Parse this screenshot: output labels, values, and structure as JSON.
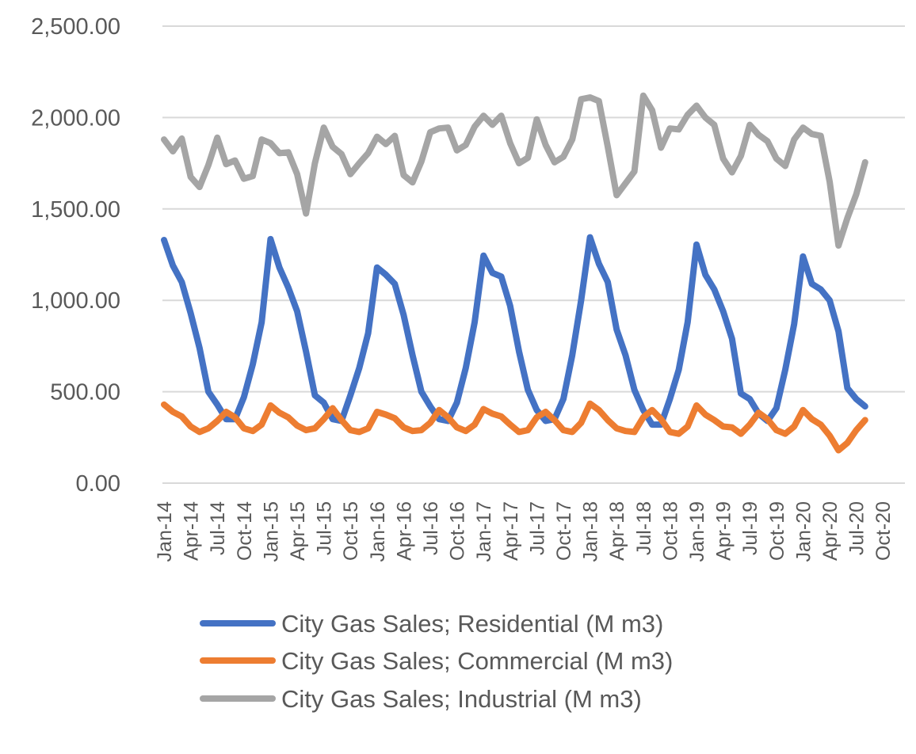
{
  "chart_data": {
    "type": "line",
    "ylim": [
      0,
      2500
    ],
    "yticks": [
      "0.00",
      "500.00",
      "1,000.00",
      "1,500.00",
      "2,000.00",
      "2,500.00"
    ],
    "ytick_values": [
      0,
      500,
      1000,
      1500,
      2000,
      2500
    ],
    "grid": true,
    "legend_position": "bottom",
    "x_start": "Jan-14",
    "xticks": [
      "Jan-14",
      "Apr-14",
      "Jul-14",
      "Oct-14",
      "Jan-15",
      "Apr-15",
      "Jul-15",
      "Oct-15",
      "Jan-16",
      "Apr-16",
      "Jul-16",
      "Oct-16",
      "Jan-17",
      "Apr-17",
      "Jul-17",
      "Oct-17",
      "Jan-18",
      "Apr-18",
      "Jul-18",
      "Oct-18",
      "Jan-19",
      "Apr-19",
      "Jul-19",
      "Oct-19",
      "Jan-20",
      "Apr-20",
      "Jul-20",
      "Oct-20"
    ],
    "series": [
      {
        "name": "City Gas Sales; Residential (M m3)",
        "color": "#4472C4",
        "values": [
          1330,
          1190,
          1100,
          930,
          740,
          500,
          430,
          350,
          350,
          470,
          650,
          880,
          1335,
          1180,
          1070,
          940,
          720,
          480,
          440,
          350,
          340,
          480,
          630,
          820,
          1180,
          1140,
          1090,
          920,
          700,
          500,
          420,
          350,
          340,
          440,
          630,
          880,
          1245,
          1150,
          1130,
          970,
          720,
          510,
          400,
          340,
          350,
          460,
          700,
          1000,
          1345,
          1200,
          1100,
          840,
          700,
          510,
          400,
          320,
          320,
          460,
          620,
          880,
          1305,
          1140,
          1060,
          940,
          790,
          490,
          460,
          380,
          340,
          410,
          620,
          870,
          1240,
          1090,
          1060,
          1000,
          830,
          520,
          460,
          420
        ],
        "label_data_names": "residential"
      },
      {
        "name": "City Gas Sales; Commercial (M m3)",
        "color": "#ED7D31",
        "values": [
          430,
          390,
          365,
          310,
          280,
          300,
          340,
          390,
          360,
          300,
          285,
          320,
          425,
          385,
          360,
          315,
          290,
          300,
          350,
          410,
          345,
          290,
          280,
          300,
          390,
          375,
          355,
          305,
          285,
          290,
          330,
          400,
          360,
          305,
          285,
          320,
          405,
          380,
          365,
          320,
          280,
          290,
          360,
          390,
          345,
          290,
          280,
          330,
          435,
          400,
          345,
          300,
          285,
          280,
          360,
          400,
          350,
          280,
          270,
          310,
          425,
          375,
          345,
          310,
          305,
          270,
          320,
          385,
          350,
          290,
          270,
          310,
          400,
          350,
          320,
          260,
          180,
          220,
          290,
          345
        ],
        "label_data_names": "commercial"
      },
      {
        "name": "City Gas Sales; Industrial (M m3)",
        "color": "#A5A5A5",
        "values": [
          1880,
          1815,
          1885,
          1675,
          1620,
          1740,
          1890,
          1745,
          1765,
          1665,
          1680,
          1880,
          1860,
          1805,
          1810,
          1690,
          1475,
          1750,
          1945,
          1840,
          1800,
          1690,
          1750,
          1805,
          1895,
          1855,
          1900,
          1685,
          1645,
          1760,
          1920,
          1940,
          1945,
          1820,
          1850,
          1950,
          2010,
          1960,
          2010,
          1860,
          1750,
          1780,
          1990,
          1850,
          1755,
          1785,
          1880,
          2100,
          2110,
          2090,
          1840,
          1575,
          1640,
          1705,
          2120,
          2040,
          1835,
          1940,
          1935,
          2015,
          2065,
          2000,
          1960,
          1775,
          1700,
          1790,
          1960,
          1905,
          1870,
          1775,
          1735,
          1880,
          1945,
          1910,
          1900,
          1650,
          1300,
          1450,
          1580,
          1755
        ],
        "label_data_names": "industrial"
      }
    ]
  }
}
